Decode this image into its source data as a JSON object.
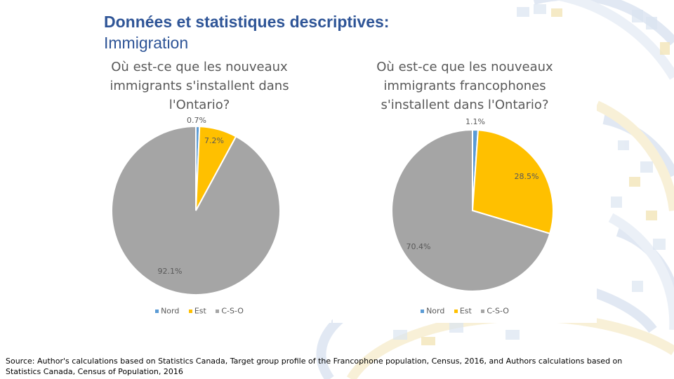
{
  "slide": {
    "title": "Données et statistiques descriptives:",
    "subtitle": "Immigration",
    "source": "Source: Author's calculations based on Statistics Canada, Target group profile of the Francophone population, Census, 2016, and Authors calculations based on Statistics Canada, Census of Population, 2016"
  },
  "colors": {
    "nord": "#5b9bd5",
    "est": "#ffc000",
    "cso": "#a5a5a5",
    "title": "#2f5597",
    "label": "#595959"
  },
  "chart_data": [
    {
      "type": "pie",
      "title": "Où est-ce que les nouveaux immigrants s'installent dans l'Ontario?",
      "title_lines": [
        "Où est-ce que les nouveaux",
        "immigrants s'installent dans",
        "l'Ontario?"
      ],
      "categories": [
        "Nord",
        "Est",
        "C-S-O"
      ],
      "values": [
        0.7,
        7.2,
        92.1
      ],
      "data_labels": [
        "0.7%",
        "7.2%",
        "92.1%"
      ],
      "colors": [
        "#5b9bd5",
        "#ffc000",
        "#a5a5a5"
      ],
      "legend": "bottom"
    },
    {
      "type": "pie",
      "title": "Où est-ce que les nouveaux immigrants francophones s'installent dans l'Ontario?",
      "title_lines": [
        "Où est-ce que les nouveaux",
        "immigrants francophones",
        "s'installent dans l'Ontario?"
      ],
      "categories": [
        "Nord",
        "Est",
        "C-S-O"
      ],
      "values": [
        1.1,
        28.5,
        70.4
      ],
      "data_labels": [
        "1.1%",
        "28.5%",
        "70.4%"
      ],
      "colors": [
        "#5b9bd5",
        "#ffc000",
        "#a5a5a5"
      ],
      "legend": "bottom"
    }
  ]
}
